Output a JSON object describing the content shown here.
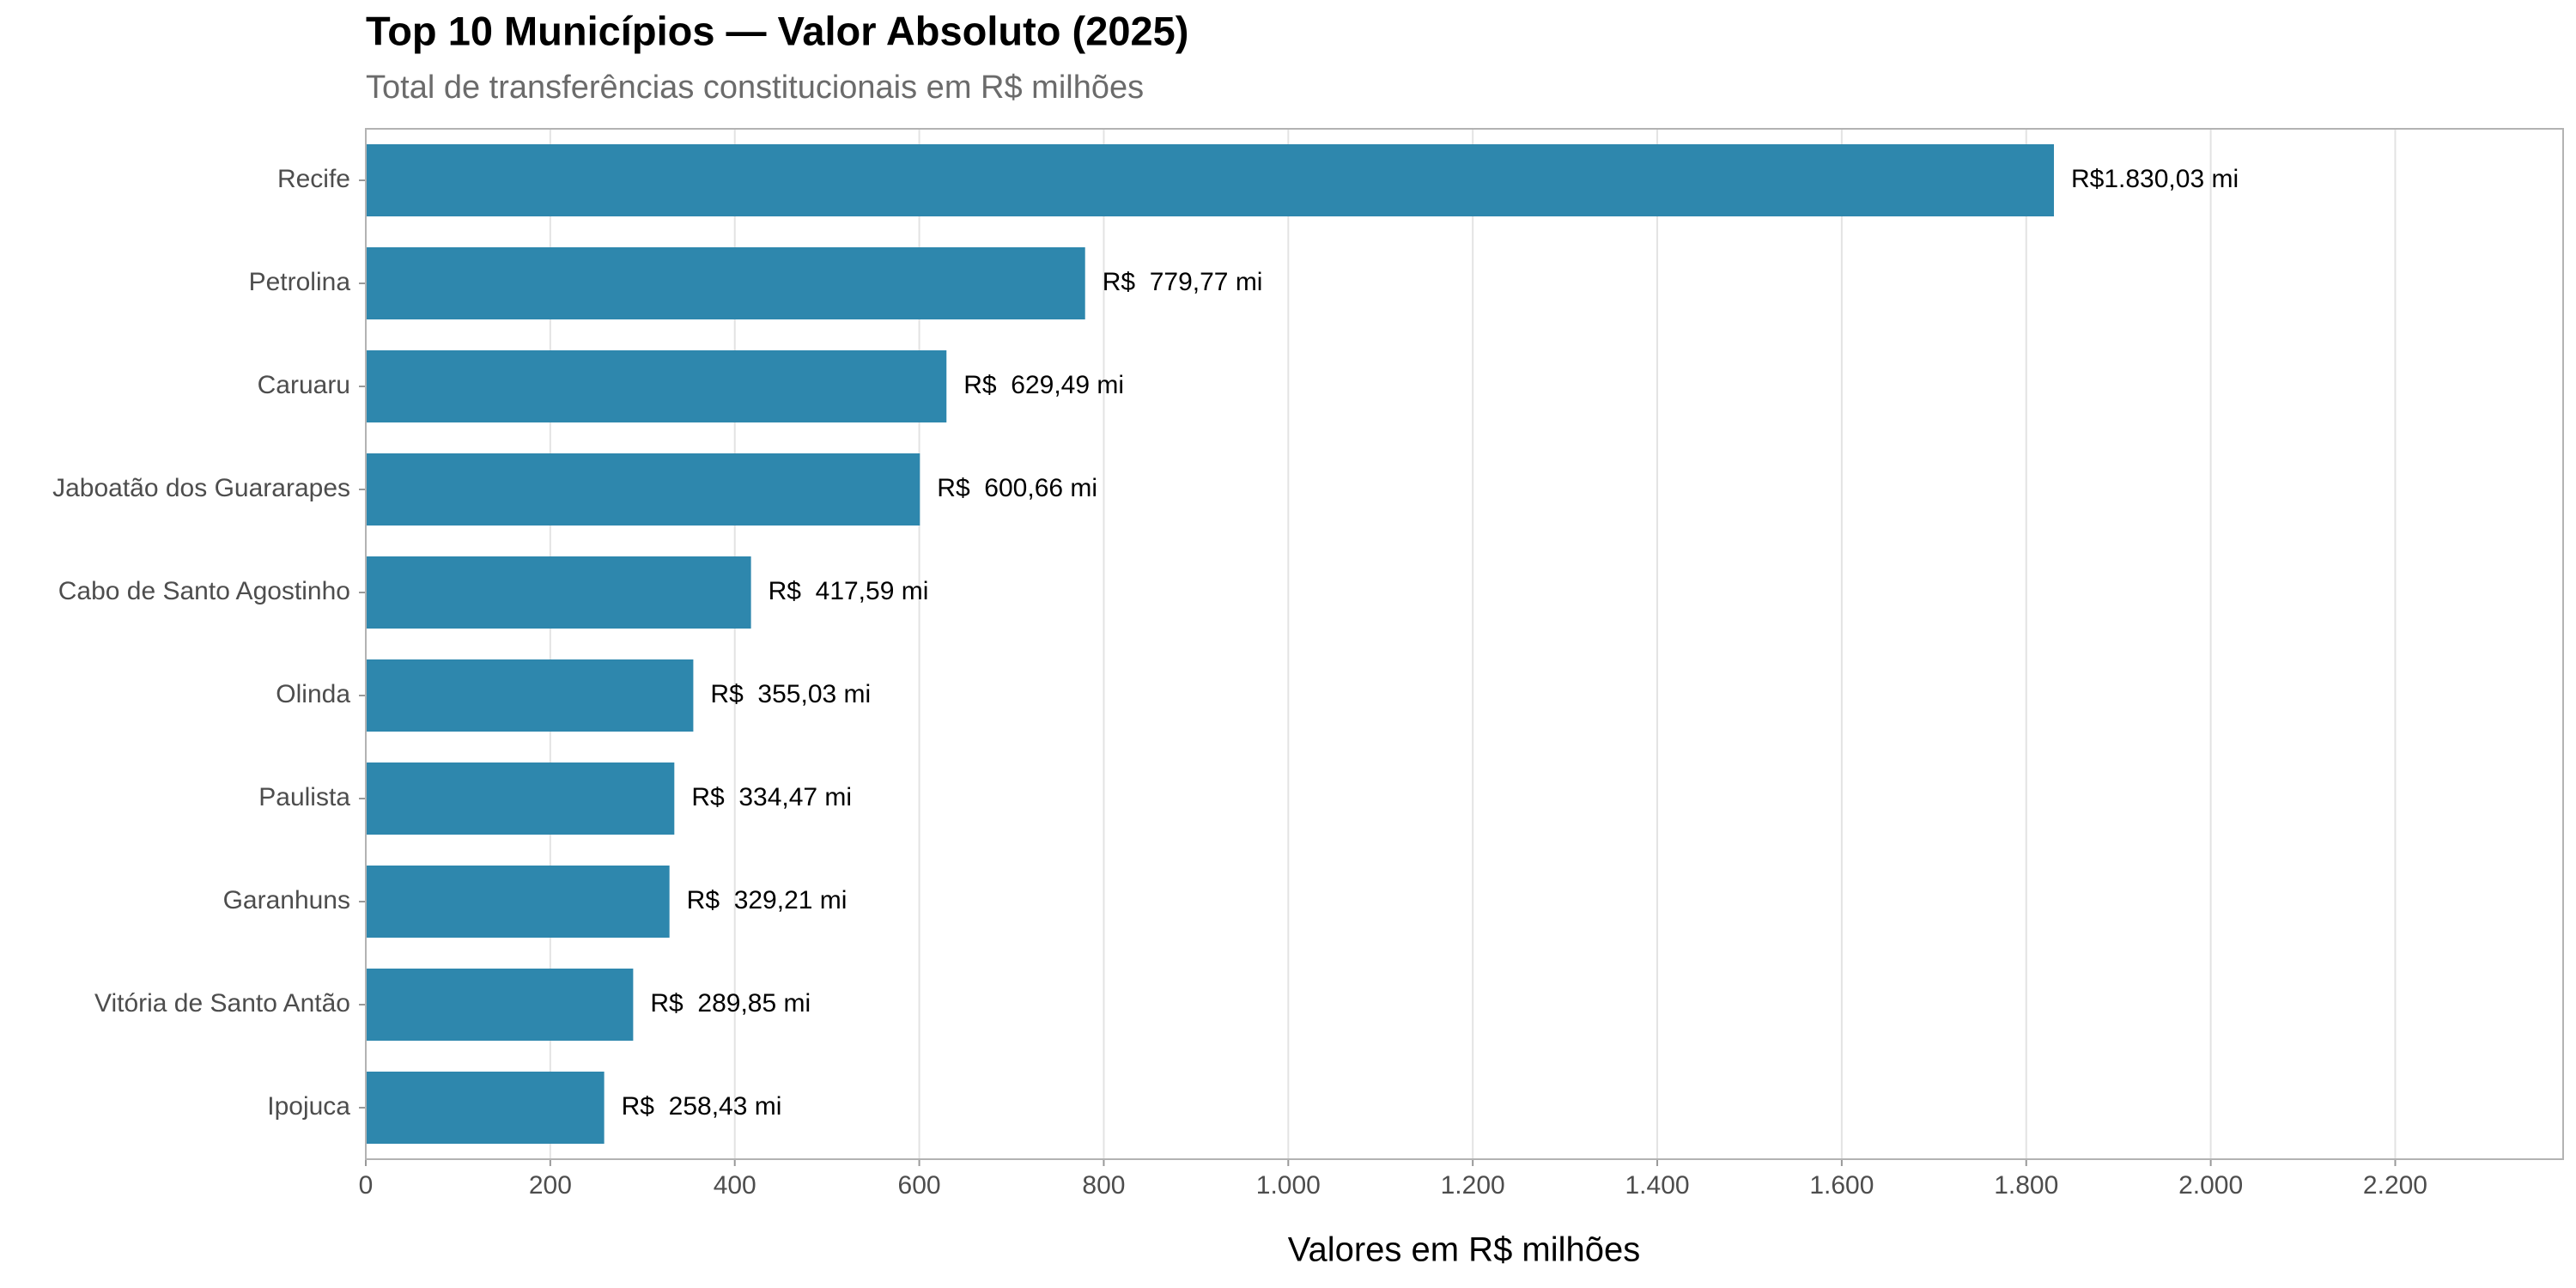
{
  "chart_data": {
    "type": "barh",
    "title": "Top 10 Municípios — Valor Absoluto (2025)",
    "subtitle": "Total de transferências constitucionais em R$ milhões",
    "x_label": "Valores em R$ milhões",
    "categories": [
      "Recife",
      "Petrolina",
      "Caruaru",
      "Jaboatão dos Guararapes",
      "Cabo de Santo Agostinho",
      "Olinda",
      "Paulista",
      "Garanhuns",
      "Vitória de Santo Antão",
      "Ipojuca"
    ],
    "values": [
      1830.03,
      779.77,
      629.49,
      600.66,
      417.59,
      355.03,
      334.47,
      329.21,
      289.85,
      258.43
    ],
    "value_labels": [
      "R$1.830,03 mi",
      "R$  779,77 mi",
      "R$  629,49 mi",
      "R$  600,66 mi",
      "R$  417,59 mi",
      "R$  355,03 mi",
      "R$  334,47 mi",
      "R$  329,21 mi",
      "R$  289,85 mi",
      "R$  258,43 mi"
    ],
    "color": "#2e87ad",
    "xlim": [
      0,
      2382
    ],
    "xticks": [
      0,
      200,
      400,
      600,
      800,
      {
        "value": 1000,
        "label": "1.000"
      },
      {
        "value": 1200,
        "label": "1.200"
      },
      {
        "value": 1400,
        "label": "1.400"
      },
      {
        "value": 1600,
        "label": "1.600"
      },
      {
        "value": 1800,
        "label": "1.800"
      },
      {
        "value": 2000,
        "label": "2.000"
      },
      {
        "value": 2200,
        "label": "2.200"
      }
    ],
    "grid": true
  }
}
